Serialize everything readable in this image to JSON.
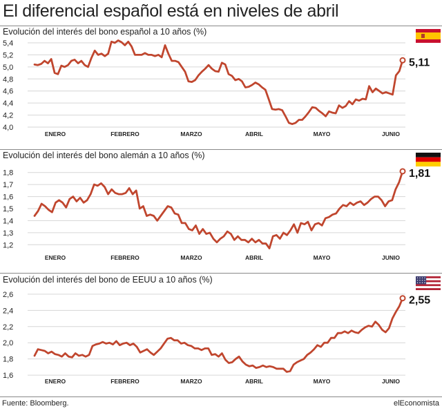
{
  "page": {
    "title": "El diferencial español está en niveles de abril",
    "source": "Fuente: Bloomberg.",
    "brand": "elEconomista"
  },
  "colors": {
    "line": "#c0462e",
    "grid": "#d6d6d6",
    "text": "#222222"
  },
  "chart_data": [
    {
      "type": "line",
      "title": "Evolución del interés del bono español a 10 años (%)",
      "flag": "spain-flag-icon",
      "final_label": "5,11",
      "ylim": [
        4.0,
        5.4
      ],
      "yticks": [
        4.0,
        4.2,
        4.4,
        4.6,
        4.8,
        5.0,
        5.2,
        5.4
      ],
      "ytick_labels": [
        "4,0",
        "4,2",
        "4,4",
        "4,6",
        "4,8",
        "5,0",
        "5,2",
        "5,4"
      ],
      "months": [
        "ENERO",
        "FEBRERO",
        "MARZO",
        "ABRIL",
        "MAYO",
        "JUNIO"
      ],
      "grid": true,
      "series": [
        {
          "values": [
            5.04,
            5.03,
            5.05,
            5.1,
            5.06,
            5.13,
            4.9,
            4.88,
            5.02,
            5.0,
            5.03,
            5.1,
            5.12,
            5.06,
            5.1,
            5.03,
            5.0,
            5.15,
            5.27,
            5.2,
            5.22,
            5.18,
            5.22,
            5.42,
            5.4,
            5.44,
            5.41,
            5.36,
            5.42,
            5.34,
            5.2,
            5.2,
            5.2,
            5.23,
            5.2,
            5.2,
            5.18,
            5.2,
            5.16,
            5.36,
            5.22,
            5.1,
            5.1,
            5.08,
            5.0,
            4.92,
            4.76,
            4.75,
            4.78,
            4.86,
            4.92,
            4.97,
            5.03,
            4.97,
            4.93,
            4.92,
            5.07,
            5.04,
            4.88,
            4.85,
            4.78,
            4.8,
            4.76,
            4.66,
            4.67,
            4.7,
            4.74,
            4.71,
            4.66,
            4.62,
            4.46,
            4.3,
            4.29,
            4.3,
            4.28,
            4.18,
            4.07,
            4.05,
            4.07,
            4.12,
            4.12,
            4.18,
            4.25,
            4.33,
            4.32,
            4.27,
            4.23,
            4.18,
            4.26,
            4.24,
            4.23,
            4.36,
            4.32,
            4.35,
            4.43,
            4.38,
            4.46,
            4.44,
            4.47,
            4.46,
            4.68,
            4.58,
            4.64,
            4.6,
            4.56,
            4.58,
            4.56,
            4.54,
            4.86,
            4.93,
            5.11
          ]
        }
      ]
    },
    {
      "type": "line",
      "title": "Evolución del interés del bono alemán a 10 años (%)",
      "flag": "germany-flag-icon",
      "final_label": "1,81",
      "ylim": [
        1.15,
        1.85
      ],
      "yticks": [
        1.2,
        1.3,
        1.4,
        1.5,
        1.6,
        1.7,
        1.8
      ],
      "ytick_labels": [
        "1,2",
        "1,3",
        "1,4",
        "1,5",
        "1,6",
        "1,7",
        "1,8"
      ],
      "months": [
        "ENERO",
        "FEBRERO",
        "MARZO",
        "ABRIL",
        "MAYO",
        "JUNIO"
      ],
      "grid": true,
      "series": [
        {
          "values": [
            1.44,
            1.48,
            1.54,
            1.52,
            1.49,
            1.47,
            1.55,
            1.57,
            1.55,
            1.51,
            1.58,
            1.6,
            1.56,
            1.59,
            1.55,
            1.57,
            1.62,
            1.7,
            1.69,
            1.71,
            1.68,
            1.62,
            1.66,
            1.63,
            1.62,
            1.62,
            1.63,
            1.67,
            1.62,
            1.65,
            1.5,
            1.52,
            1.44,
            1.45,
            1.44,
            1.4,
            1.44,
            1.48,
            1.52,
            1.51,
            1.46,
            1.45,
            1.38,
            1.38,
            1.33,
            1.32,
            1.36,
            1.29,
            1.33,
            1.29,
            1.3,
            1.25,
            1.22,
            1.25,
            1.27,
            1.31,
            1.29,
            1.24,
            1.27,
            1.24,
            1.24,
            1.22,
            1.25,
            1.22,
            1.24,
            1.21,
            1.21,
            1.17,
            1.27,
            1.28,
            1.25,
            1.3,
            1.28,
            1.32,
            1.37,
            1.3,
            1.38,
            1.37,
            1.39,
            1.32,
            1.37,
            1.38,
            1.36,
            1.42,
            1.43,
            1.45,
            1.46,
            1.5,
            1.53,
            1.52,
            1.55,
            1.53,
            1.55,
            1.56,
            1.53,
            1.55,
            1.58,
            1.6,
            1.6,
            1.57,
            1.52,
            1.56,
            1.57,
            1.66,
            1.72,
            1.81
          ]
        }
      ]
    },
    {
      "type": "line",
      "title": "Evolución del interés del bono de EEUU a 10 años (%)",
      "flag": "usa-flag-icon",
      "final_label": "2,55",
      "ylim": [
        1.55,
        2.65
      ],
      "yticks": [
        1.6,
        1.8,
        2.0,
        2.2,
        2.4,
        2.6
      ],
      "ytick_labels": [
        "1,6",
        "1,8",
        "2,0",
        "2,2",
        "2,4",
        "2,6"
      ],
      "months": [
        "ENERO",
        "FEBRERO",
        "MARZO",
        "ABRIL",
        "MAYO",
        "JUNIO"
      ],
      "grid": true,
      "series": [
        {
          "values": [
            1.84,
            1.92,
            1.91,
            1.9,
            1.87,
            1.89,
            1.86,
            1.85,
            1.83,
            1.87,
            1.83,
            1.82,
            1.87,
            1.84,
            1.85,
            1.83,
            1.85,
            1.96,
            1.98,
            1.99,
            2.01,
            1.99,
            2.0,
            1.98,
            2.02,
            1.97,
            1.99,
            2.0,
            1.97,
            1.99,
            1.95,
            1.88,
            1.9,
            1.92,
            1.88,
            1.85,
            1.89,
            1.93,
            1.99,
            2.05,
            2.06,
            2.03,
            2.03,
            1.99,
            2.0,
            1.97,
            1.96,
            1.93,
            1.93,
            1.91,
            1.93,
            1.93,
            1.85,
            1.86,
            1.83,
            1.87,
            1.79,
            1.75,
            1.76,
            1.8,
            1.83,
            1.77,
            1.73,
            1.71,
            1.72,
            1.69,
            1.7,
            1.72,
            1.7,
            1.71,
            1.7,
            1.68,
            1.68,
            1.68,
            1.64,
            1.65,
            1.73,
            1.76,
            1.78,
            1.8,
            1.85,
            1.88,
            1.92,
            1.97,
            1.95,
            2.0,
            2.0,
            2.06,
            2.06,
            2.12,
            2.12,
            2.14,
            2.12,
            2.15,
            2.13,
            2.12,
            2.16,
            2.19,
            2.21,
            2.2,
            2.26,
            2.22,
            2.16,
            2.13,
            2.18,
            2.3,
            2.38,
            2.45,
            2.55
          ]
        }
      ]
    }
  ]
}
